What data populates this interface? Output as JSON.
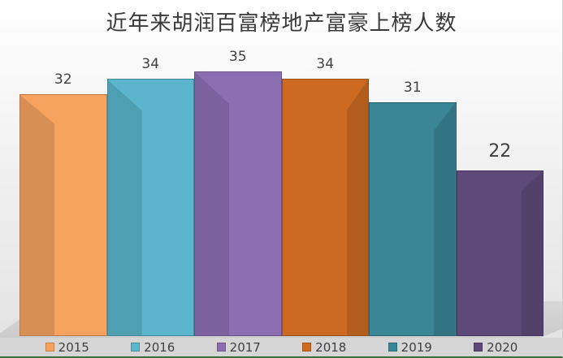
{
  "chart_data": {
    "type": "bar",
    "title": "近年来胡润百富榜地产富豪上榜人数",
    "categories": [
      "2015",
      "2016",
      "2017",
      "2018",
      "2019",
      "2020"
    ],
    "values": [
      32,
      34,
      35,
      34,
      31,
      22
    ],
    "colors": [
      "#F5A35F",
      "#5BB5CC",
      "#8C6FB3",
      "#CC6A22",
      "#3A8596",
      "#5D4A7A"
    ],
    "xlabel": "",
    "ylabel": "",
    "ylim": [
      0,
      40
    ],
    "grid": true,
    "legend_position": "bottom",
    "style": "3d-column"
  },
  "legend": [
    {
      "label": "2015"
    },
    {
      "label": "2016"
    },
    {
      "label": "2017"
    },
    {
      "label": "2018"
    },
    {
      "label": "2019"
    },
    {
      "label": "2020"
    }
  ],
  "bars": [
    {
      "label": "32"
    },
    {
      "label": "34"
    },
    {
      "label": "35"
    },
    {
      "label": "34"
    },
    {
      "label": "31"
    },
    {
      "label": "22"
    }
  ]
}
